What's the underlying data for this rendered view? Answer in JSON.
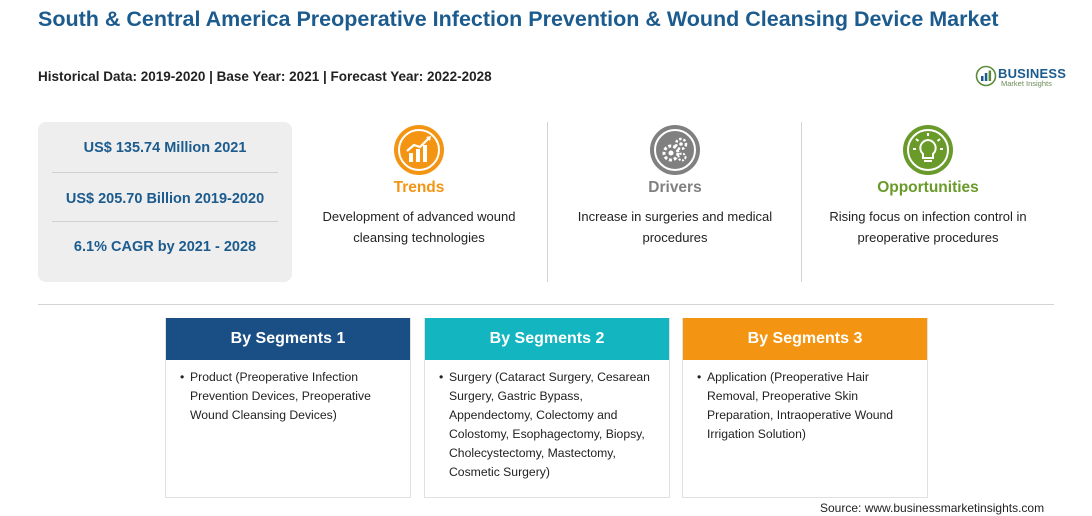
{
  "header": {
    "title": "South & Central America Preoperative Infection Prevention & Wound Cleansing Device Market",
    "subtitle": "Historical Data: 2019-2020 | Base Year: 2021 | Forecast Year: 2022-2028"
  },
  "logo": {
    "word": "BUSINESS",
    "sub": "Market Insights"
  },
  "stats": [
    "US$ 135.74 Million 2021",
    "US$ 205.70 Billion 2019-2020",
    "6.1% CAGR by 2021 - 2028"
  ],
  "columns": [
    {
      "title": "Trends",
      "text": "Development of advanced wound cleansing technologies",
      "color": "#f39512",
      "icon": "chart-up-icon"
    },
    {
      "title": "Drivers",
      "text": "Increase in surgeries and medical procedures",
      "color": "#808080",
      "icon": "gears-icon"
    },
    {
      "title": "Opportunities",
      "text": "Rising focus on infection control in preoperative procedures",
      "color": "#6a9a2a",
      "icon": "lightbulb-icon"
    }
  ],
  "segments": [
    {
      "title": "By Segments 1",
      "color": "#1a4f86",
      "text": "Product (Preoperative Infection Prevention Devices, Preoperative Wound Cleansing Devices)"
    },
    {
      "title": "By Segments 2",
      "color": "#12b5c0",
      "text": "Surgery (Cataract Surgery, Cesarean Surgery, Gastric Bypass, Appendectomy, Colectomy and Colostomy, Esophagectomy, Biopsy, Cholecystectomy, Mastectomy, Cosmetic Surgery)"
    },
    {
      "title": "By Segments 3",
      "color": "#f39512",
      "text": "Application (Preoperative Hair Removal, Preoperative Skin Preparation, Intraoperative Wound Irrigation Solution)"
    }
  ],
  "source": "Source: www.businessmarketinsights.com"
}
